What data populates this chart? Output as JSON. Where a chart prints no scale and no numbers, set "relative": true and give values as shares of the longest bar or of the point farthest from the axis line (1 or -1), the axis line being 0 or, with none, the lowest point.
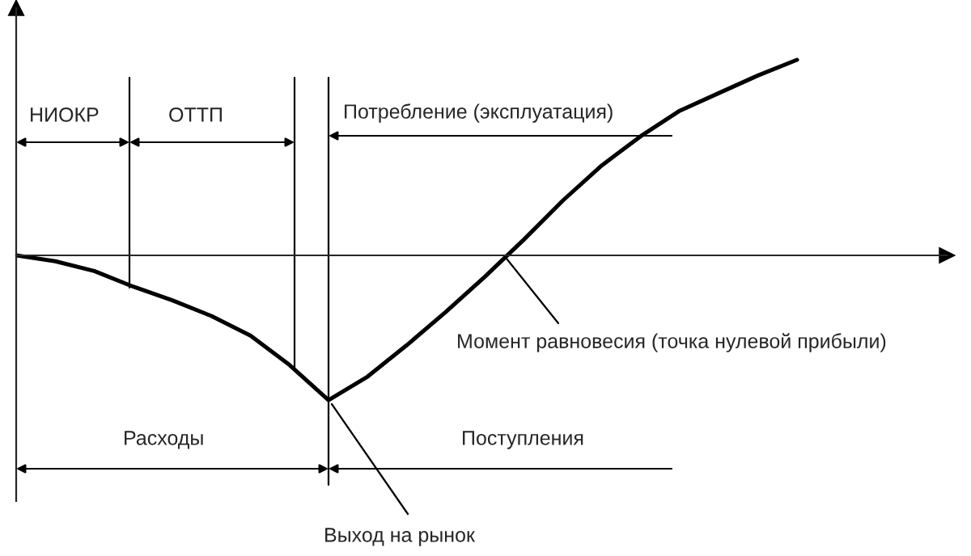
{
  "chart_data": {
    "type": "line",
    "relative": true,
    "categories": [
      null,
      null,
      null,
      null,
      null,
      null,
      null,
      null,
      null,
      null,
      null,
      null,
      null,
      null,
      null,
      null,
      null,
      null,
      null,
      null,
      null
    ],
    "series": [
      {
        "color": "#000000",
        "values": [
          0,
          -0.03,
          -0.08,
          -0.16,
          -0.23,
          -0.31,
          -0.41,
          -0.56,
          -0.74,
          -0.62,
          -0.46,
          -0.29,
          -0.11,
          0.08,
          0.28,
          0.46,
          0.61,
          0.74,
          0.83,
          0.92,
          1
        ]
      }
    ],
    "annotations": [
      "НИОКР",
      "ОТТП",
      "Потребление (эксплуатация)",
      "Момент равновесия (точка нулевой прибыли)",
      "Расходы",
      "Поступления",
      "Выход на рынок"
    ]
  }
}
